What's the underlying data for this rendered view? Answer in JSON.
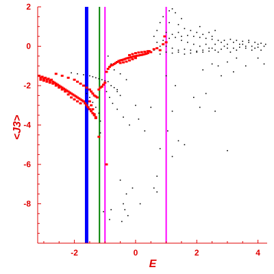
{
  "chart_data": {
    "type": "scatter",
    "title": "",
    "xlabel": "E",
    "ylabel": "<J3>",
    "xlim": [
      -3.2,
      4.3
    ],
    "ylim": [
      -10,
      2
    ],
    "xticks": [
      -2,
      0,
      2,
      4
    ],
    "yticks": [
      2,
      0,
      -2,
      -4,
      -6,
      -8
    ],
    "xtick_labels": [
      "-2",
      "0",
      "2",
      "4"
    ],
    "ytick_labels": [
      "2",
      "0",
      "-2",
      "-4",
      "-6",
      "-8"
    ],
    "grid": false,
    "colors": {
      "axis": "#e00000",
      "red_series": "#ff0000",
      "black_series": "#000000",
      "blue_line": "#0000ff",
      "green_line": "#008000",
      "magenta_line": "#ff00ff"
    },
    "vertical_lines": [
      {
        "x": -1.6,
        "color": "#0000ff",
        "width": "thick"
      },
      {
        "x": -1.18,
        "color": "#008000",
        "width": "medium"
      },
      {
        "x": -1.0,
        "color": "#ff00ff",
        "width": "medium"
      },
      {
        "x": 1.0,
        "color": "#ff00ff",
        "width": "medium"
      }
    ],
    "series": [
      {
        "color": "#ff0000",
        "marker": "square",
        "points": [
          [
            -3.15,
            -1.5
          ],
          [
            -3.1,
            -1.6
          ],
          [
            -3.05,
            -1.55
          ],
          [
            -3.0,
            -1.65
          ],
          [
            -2.95,
            -1.6
          ],
          [
            -2.9,
            -1.7
          ],
          [
            -2.85,
            -1.65
          ],
          [
            -2.8,
            -1.75
          ],
          [
            -2.75,
            -1.7
          ],
          [
            -2.7,
            -1.8
          ],
          [
            -2.65,
            -1.85
          ],
          [
            -2.6,
            -1.9
          ],
          [
            -2.55,
            -1.95
          ],
          [
            -2.5,
            -2.0
          ],
          [
            -2.45,
            -2.05
          ],
          [
            -2.4,
            -2.1
          ],
          [
            -2.35,
            -2.15
          ],
          [
            -2.3,
            -2.2
          ],
          [
            -2.25,
            -2.25
          ],
          [
            -2.2,
            -2.3
          ],
          [
            -2.15,
            -2.35
          ],
          [
            -2.1,
            -2.4
          ],
          [
            -2.05,
            -2.45
          ],
          [
            -2.0,
            -2.5
          ],
          [
            -1.95,
            -2.55
          ],
          [
            -1.9,
            -2.6
          ],
          [
            -1.85,
            -2.65
          ],
          [
            -1.8,
            -2.7
          ],
          [
            -1.75,
            -2.75
          ],
          [
            -1.7,
            -2.8
          ],
          [
            -1.65,
            -2.9
          ],
          [
            -1.6,
            -3.0
          ],
          [
            -1.55,
            -3.1
          ],
          [
            -1.5,
            -3.2
          ],
          [
            -1.45,
            -3.3
          ],
          [
            -1.4,
            -3.4
          ],
          [
            -1.35,
            -3.5
          ],
          [
            -3.1,
            -1.7
          ],
          [
            -3.0,
            -1.75
          ],
          [
            -2.9,
            -1.8
          ],
          [
            -2.8,
            -1.85
          ],
          [
            -2.7,
            -1.9
          ],
          [
            -2.6,
            -2.0
          ],
          [
            -2.5,
            -2.1
          ],
          [
            -2.4,
            -2.2
          ],
          [
            -2.3,
            -2.3
          ],
          [
            -2.2,
            -2.45
          ],
          [
            -2.1,
            -2.6
          ],
          [
            -2.0,
            -2.7
          ],
          [
            -1.9,
            -2.8
          ],
          [
            -1.8,
            -2.9
          ],
          [
            -2.6,
            -1.4
          ],
          [
            -2.4,
            -1.5
          ],
          [
            -2.2,
            -1.6
          ],
          [
            -2.0,
            -1.7
          ],
          [
            -1.9,
            -1.8
          ],
          [
            -1.8,
            -1.9
          ],
          [
            -1.7,
            -2.0
          ],
          [
            -1.6,
            -2.1
          ],
          [
            -1.5,
            -2.2
          ],
          [
            -1.45,
            -2.3
          ],
          [
            -1.4,
            -2.4
          ],
          [
            -1.35,
            -2.5
          ],
          [
            -1.3,
            -2.55
          ],
          [
            -1.25,
            -2.6
          ],
          [
            -1.5,
            -2.8
          ],
          [
            -1.45,
            -3.0
          ],
          [
            -1.4,
            -3.2
          ],
          [
            -1.35,
            -3.45
          ],
          [
            -1.3,
            -3.6
          ],
          [
            -1.3,
            -3.65
          ],
          [
            -1.2,
            -2.2
          ],
          [
            -1.15,
            -2.1
          ],
          [
            -1.1,
            -2.05
          ],
          [
            -1.05,
            -1.95
          ],
          [
            -1.0,
            -1.85
          ],
          [
            -0.95,
            -1.3
          ],
          [
            -0.9,
            -1.15
          ],
          [
            -0.85,
            -1.05
          ],
          [
            -0.8,
            -0.98
          ],
          [
            -0.75,
            -0.95
          ],
          [
            -0.7,
            -0.9
          ],
          [
            -0.65,
            -0.85
          ],
          [
            -0.6,
            -0.8
          ],
          [
            -0.55,
            -0.75
          ],
          [
            -0.5,
            -0.72
          ],
          [
            -0.45,
            -0.7
          ],
          [
            -0.4,
            -0.68
          ],
          [
            -0.35,
            -0.65
          ],
          [
            -0.3,
            -0.62
          ],
          [
            -0.25,
            -0.6
          ],
          [
            -0.2,
            -0.58
          ],
          [
            -0.15,
            -0.56
          ],
          [
            -0.1,
            -0.54
          ],
          [
            -0.05,
            -0.52
          ],
          [
            0.0,
            -0.5
          ],
          [
            0.05,
            -0.48
          ],
          [
            0.1,
            -0.47
          ],
          [
            0.15,
            -0.45
          ],
          [
            0.2,
            -0.44
          ],
          [
            0.25,
            -0.42
          ],
          [
            0.3,
            -0.4
          ],
          [
            0.35,
            -0.38
          ],
          [
            0.4,
            -0.35
          ],
          [
            -0.2,
            -0.45
          ],
          [
            -0.1,
            -0.4
          ],
          [
            0.0,
            -0.35
          ],
          [
            0.1,
            -0.32
          ],
          [
            0.2,
            -0.3
          ],
          [
            0.3,
            -0.28
          ],
          [
            0.4,
            -0.25
          ],
          [
            -0.5,
            -0.85
          ],
          [
            -0.4,
            -0.82
          ],
          [
            -0.3,
            -0.78
          ],
          [
            -0.2,
            -0.72
          ],
          [
            -0.1,
            -0.66
          ],
          [
            0.0,
            -0.6
          ],
          [
            0.45,
            -0.25
          ],
          [
            0.5,
            -0.3
          ],
          [
            0.6,
            -0.15
          ],
          [
            0.7,
            -0.1
          ],
          [
            0.8,
            -0.2
          ],
          [
            0.9,
            0.1
          ],
          [
            1.0,
            0.2
          ],
          [
            0.95,
            0.5
          ],
          [
            -0.95,
            -6.0
          ],
          [
            -1.2,
            -4.6
          ]
        ]
      },
      {
        "color": "#000000",
        "marker": "dot",
        "points": [
          [
            -2.1,
            -1.35
          ],
          [
            -1.9,
            -1.4
          ],
          [
            -1.7,
            -1.45
          ],
          [
            -1.5,
            -1.5
          ],
          [
            -1.4,
            -1.55
          ],
          [
            -1.3,
            -1.6
          ],
          [
            -1.2,
            -1.65
          ],
          [
            -1.1,
            -1.7
          ],
          [
            -1.0,
            -1.75
          ],
          [
            -0.9,
            -1.8
          ],
          [
            -0.8,
            -2.0
          ],
          [
            -0.7,
            -2.1
          ],
          [
            -0.6,
            -2.3
          ],
          [
            -0.5,
            -2.5
          ],
          [
            -1.6,
            -2.4
          ],
          [
            -1.5,
            -2.6
          ],
          [
            -1.4,
            -2.85
          ],
          [
            -1.3,
            -3.1
          ],
          [
            -1.2,
            -3.4
          ],
          [
            -1.15,
            -3.8
          ],
          [
            -1.15,
            -4.4
          ],
          [
            -0.95,
            -2.3
          ],
          [
            -0.85,
            -2.6
          ],
          [
            -0.75,
            -2.9
          ],
          [
            -0.6,
            -3.2
          ],
          [
            -0.4,
            -3.6
          ],
          [
            -0.2,
            -4.0
          ],
          [
            0.0,
            -3.0
          ],
          [
            0.1,
            -3.7
          ],
          [
            0.3,
            -4.3
          ],
          [
            0.5,
            -3.1
          ],
          [
            0.7,
            -6.6
          ],
          [
            0.8,
            -5.2
          ],
          [
            0.6,
            -7.2
          ],
          [
            0.7,
            -7.4
          ],
          [
            -0.5,
            -6.8
          ],
          [
            -0.4,
            -8.0
          ],
          [
            -0.25,
            -8.6
          ],
          [
            -0.3,
            -7.5
          ],
          [
            -0.8,
            -8.3
          ],
          [
            -0.1,
            -7.2
          ],
          [
            0.15,
            -8.0
          ],
          [
            -1.05,
            -8.4
          ],
          [
            -0.85,
            -8.8
          ],
          [
            -0.45,
            -8.9
          ],
          [
            -0.35,
            -8.3
          ],
          [
            -0.9,
            -0.5
          ],
          [
            -0.8,
            -0.9
          ],
          [
            -0.7,
            -1.2
          ],
          [
            -0.5,
            -1.4
          ],
          [
            -0.3,
            -1.7
          ],
          [
            -0.6,
            -2.2
          ],
          [
            1.05,
            -4.3
          ],
          [
            1.2,
            -5.6
          ],
          [
            1.4,
            -4.8
          ],
          [
            1.6,
            -5.0
          ],
          [
            2.1,
            -3.1
          ],
          [
            2.6,
            -3.3
          ],
          [
            3.0,
            -5.3
          ],
          [
            1.0,
            -1.5
          ],
          [
            1.2,
            -3.3
          ],
          [
            1.3,
            -2.0
          ],
          [
            1.9,
            -2.6
          ],
          [
            2.3,
            -2.4
          ],
          [
            2.8,
            -1.5
          ],
          [
            3.2,
            -1.3
          ],
          [
            0.6,
            0.5
          ],
          [
            0.7,
            0.8
          ],
          [
            0.8,
            1.2
          ],
          [
            0.9,
            1.5
          ],
          [
            1.1,
            1.8
          ],
          [
            1.2,
            1.9
          ],
          [
            1.3,
            1.7
          ],
          [
            1.5,
            1.4
          ],
          [
            1.1,
            1.2
          ],
          [
            0.6,
            -0.2
          ],
          [
            0.8,
            0.0
          ],
          [
            1.0,
            0.0
          ],
          [
            1.2,
            -0.1
          ],
          [
            1.4,
            -0.2
          ],
          [
            1.6,
            -0.15
          ],
          [
            1.8,
            -0.2
          ],
          [
            2.0,
            -0.25
          ],
          [
            2.2,
            -0.3
          ],
          [
            2.4,
            -0.25
          ],
          [
            2.6,
            -0.2
          ],
          [
            2.8,
            -0.15
          ],
          [
            3.0,
            -0.1
          ],
          [
            3.2,
            -0.1
          ],
          [
            3.4,
            -0.05
          ],
          [
            3.6,
            0.0
          ],
          [
            3.8,
            0.0
          ],
          [
            4.0,
            -0.05
          ],
          [
            4.2,
            0.0
          ],
          [
            0.7,
            0.2
          ],
          [
            0.9,
            0.3
          ],
          [
            1.1,
            0.4
          ],
          [
            1.3,
            0.45
          ],
          [
            1.5,
            0.5
          ],
          [
            1.7,
            0.55
          ],
          [
            1.9,
            0.5
          ],
          [
            2.1,
            0.45
          ],
          [
            2.3,
            0.4
          ],
          [
            2.5,
            0.35
          ],
          [
            2.7,
            0.3
          ],
          [
            2.9,
            0.3
          ],
          [
            3.1,
            0.35
          ],
          [
            3.3,
            0.3
          ],
          [
            3.5,
            0.25
          ],
          [
            3.7,
            0.2
          ],
          [
            3.9,
            0.2
          ],
          [
            4.1,
            0.15
          ],
          [
            4.25,
            0.1
          ],
          [
            0.8,
            -0.4
          ],
          [
            1.0,
            -0.3
          ],
          [
            1.2,
            -0.35
          ],
          [
            1.4,
            -0.3
          ],
          [
            1.6,
            -0.4
          ],
          [
            1.8,
            -0.35
          ],
          [
            2.0,
            -0.3
          ],
          [
            2.2,
            -0.2
          ],
          [
            2.4,
            -0.1
          ],
          [
            2.6,
            0.1
          ],
          [
            2.8,
            0.2
          ],
          [
            3.0,
            0.1
          ],
          [
            3.2,
            0.2
          ],
          [
            3.4,
            0.1
          ],
          [
            3.6,
            -0.1
          ],
          [
            3.8,
            -0.2
          ],
          [
            4.0,
            0.1
          ],
          [
            1.6,
            0.9
          ],
          [
            1.8,
            0.8
          ],
          [
            2.0,
            0.7
          ],
          [
            2.2,
            0.6
          ],
          [
            2.4,
            0.7
          ],
          [
            2.6,
            0.8
          ],
          [
            1.4,
            1.1
          ],
          [
            2.1,
            1.0
          ],
          [
            2.5,
            0.5
          ],
          [
            1.0,
            0.7
          ],
          [
            1.2,
            0.6
          ],
          [
            1.4,
            0.7
          ],
          [
            1.5,
            0.3
          ],
          [
            1.7,
            0.2
          ],
          [
            1.9,
            0.1
          ],
          [
            2.1,
            0.0
          ],
          [
            2.3,
            0.1
          ],
          [
            2.5,
            -0.1
          ],
          [
            2.7,
            -0.3
          ],
          [
            2.9,
            0.0
          ],
          [
            3.1,
            -0.3
          ],
          [
            3.3,
            -0.2
          ],
          [
            3.5,
            0.1
          ],
          [
            3.7,
            0.3
          ],
          [
            3.9,
            -0.1
          ],
          [
            4.1,
            -0.2
          ],
          [
            2.7,
            -1.0
          ],
          [
            3.0,
            -0.8
          ],
          [
            3.3,
            -0.6
          ],
          [
            3.6,
            -1.0
          ],
          [
            4.0,
            -0.6
          ],
          [
            4.2,
            -0.9
          ],
          [
            2.2,
            -1.2
          ],
          [
            2.5,
            -0.9
          ]
        ]
      }
    ]
  }
}
